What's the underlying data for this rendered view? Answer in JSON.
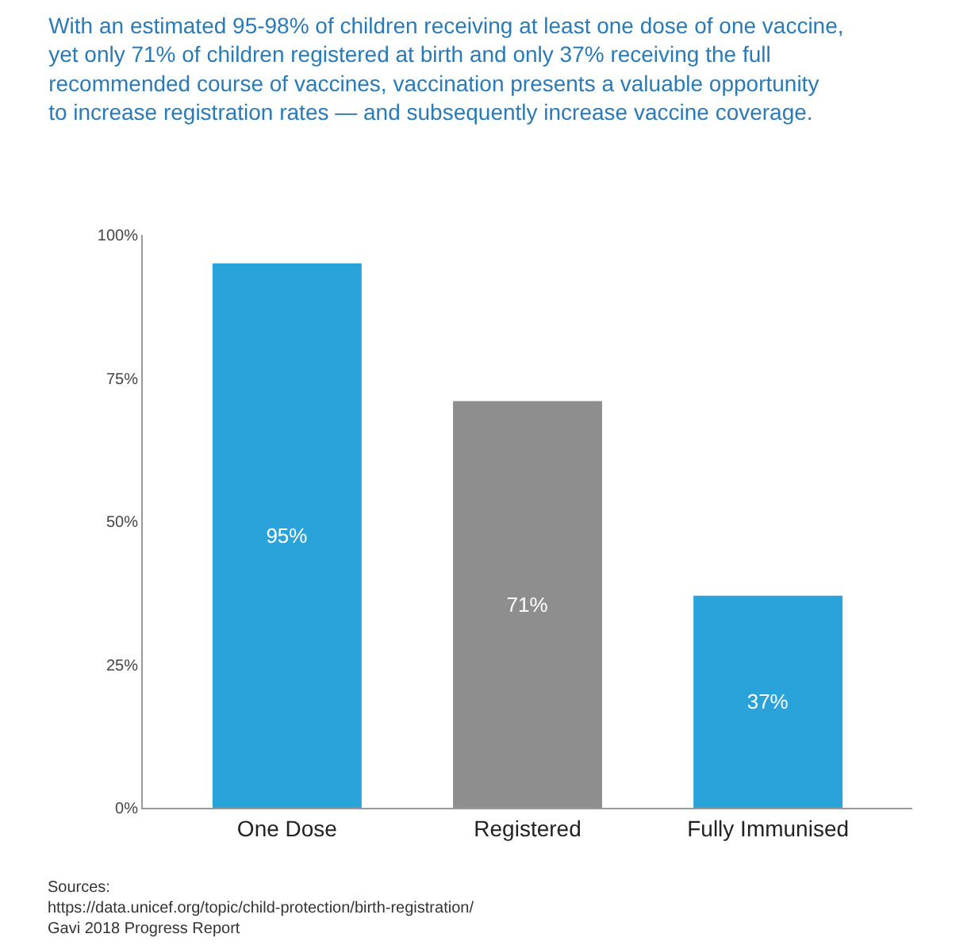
{
  "chart_data": {
    "type": "bar",
    "title": "With an estimated 95-98% of children receiving at least one dose of one vaccine,\nyet only 71% of children registered at birth and only 37% receiving the full\nrecommended course of vaccines, vaccination presents a valuable opportunity\nto increase registration rates — and subsequently increase vaccine coverage.",
    "categories": [
      "One Dose",
      "Registered",
      "Fully Immunised"
    ],
    "values": [
      95,
      71,
      37
    ],
    "colors": [
      "#29a3da",
      "#8e8e8e",
      "#29a3da"
    ],
    "value_labels": [
      "95%",
      "71%",
      "37%"
    ],
    "ylim": [
      0,
      100
    ],
    "yticks": [
      {
        "value": 0,
        "label": "0%"
      },
      {
        "value": 25,
        "label": "25%"
      },
      {
        "value": 50,
        "label": "50%"
      },
      {
        "value": 75,
        "label": "75%"
      },
      {
        "value": 100,
        "label": "100%"
      }
    ],
    "legend": false,
    "annotations": [
      "Sources:",
      "https://data.unicef.org/topic/child-protection/birth-registration/",
      "Gavi 2018 Progress Report"
    ]
  }
}
